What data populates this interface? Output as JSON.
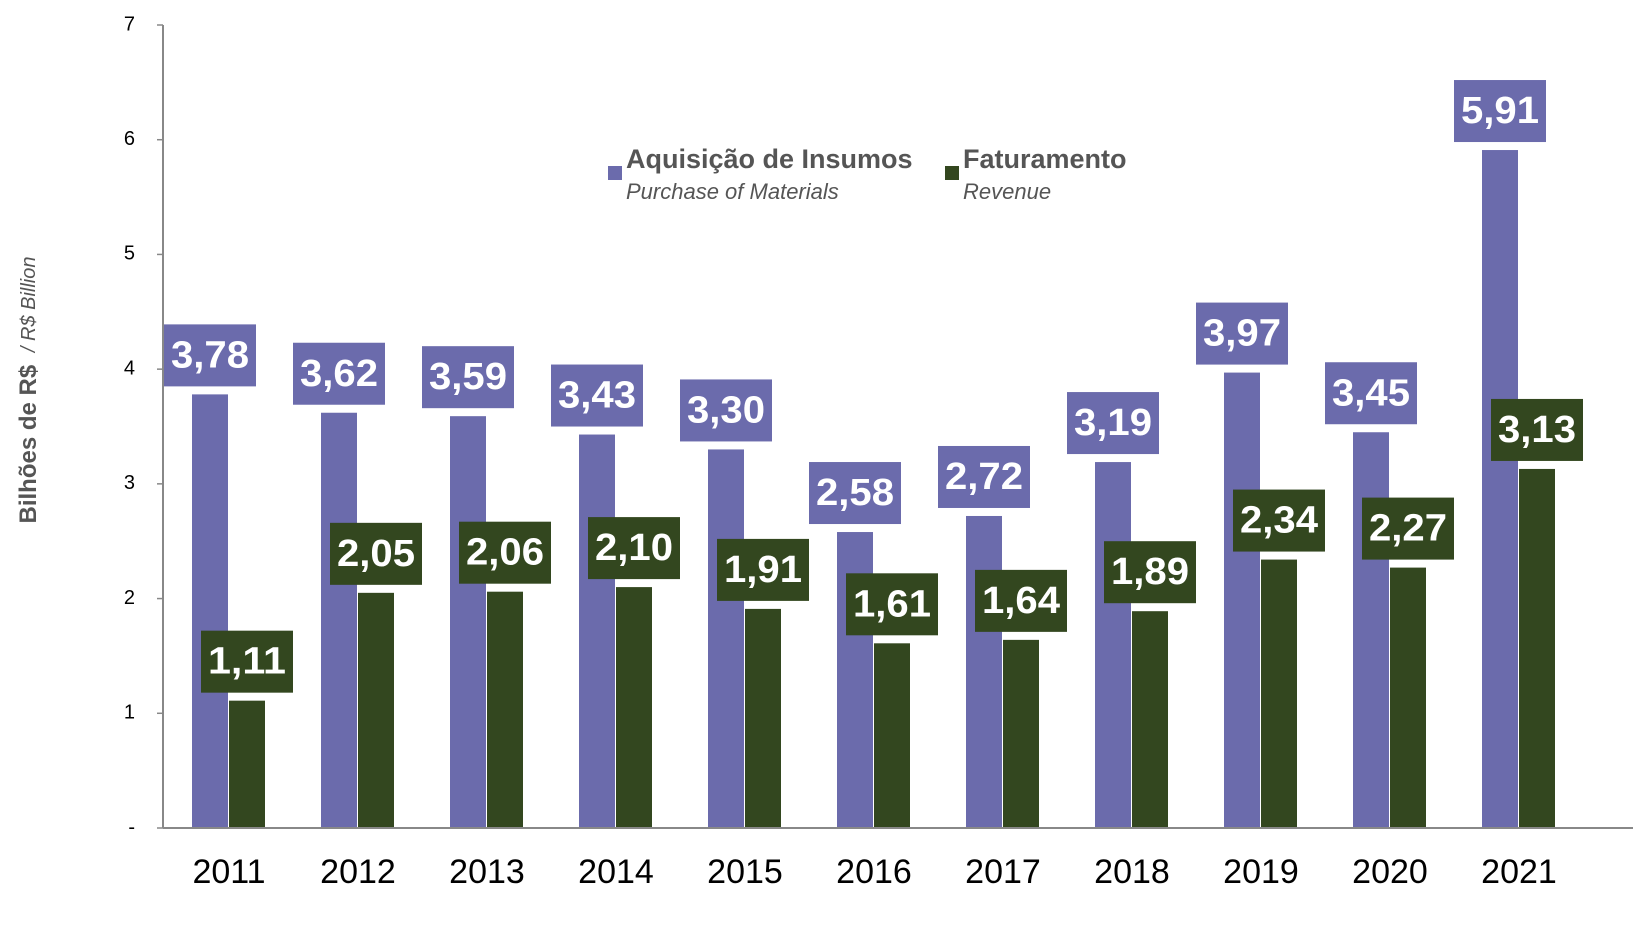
{
  "chart_data": {
    "type": "bar",
    "y_label": "Bilhões de R$",
    "y_label_en": "/ R$ Billion",
    "categories": [
      "2011",
      "2012",
      "2013",
      "2014",
      "2015",
      "2016",
      "2017",
      "2018",
      "2019",
      "2020",
      "2021"
    ],
    "series": [
      {
        "name": "Aquisição de Insumos",
        "name_en": "Purchase of Materials",
        "color": "#6b6bac",
        "values": [
          3.78,
          3.62,
          3.59,
          3.43,
          3.3,
          2.58,
          2.72,
          3.19,
          3.97,
          3.45,
          5.91
        ],
        "value_labels": [
          "3,78",
          "3,62",
          "3,59",
          "3,43",
          "3,30",
          "2,58",
          "2,72",
          "3,19",
          "3,97",
          "3,45",
          "5,91"
        ]
      },
      {
        "name": "Faturamento",
        "name_en": "Revenue",
        "color": "#33471f",
        "values": [
          1.11,
          2.05,
          2.06,
          2.1,
          1.91,
          1.61,
          1.64,
          1.89,
          2.34,
          2.27,
          3.13
        ],
        "value_labels": [
          "1,11",
          "2,05",
          "2,06",
          "2,10",
          "1,91",
          "1,61",
          "1,64",
          "1,89",
          "2,34",
          "2,27",
          "3,13"
        ]
      }
    ],
    "ylim": [
      0,
      7
    ],
    "yticks": [
      {
        "value": 0,
        "label": "-"
      },
      1,
      2,
      3,
      4,
      5,
      6,
      7
    ],
    "grid": false
  }
}
